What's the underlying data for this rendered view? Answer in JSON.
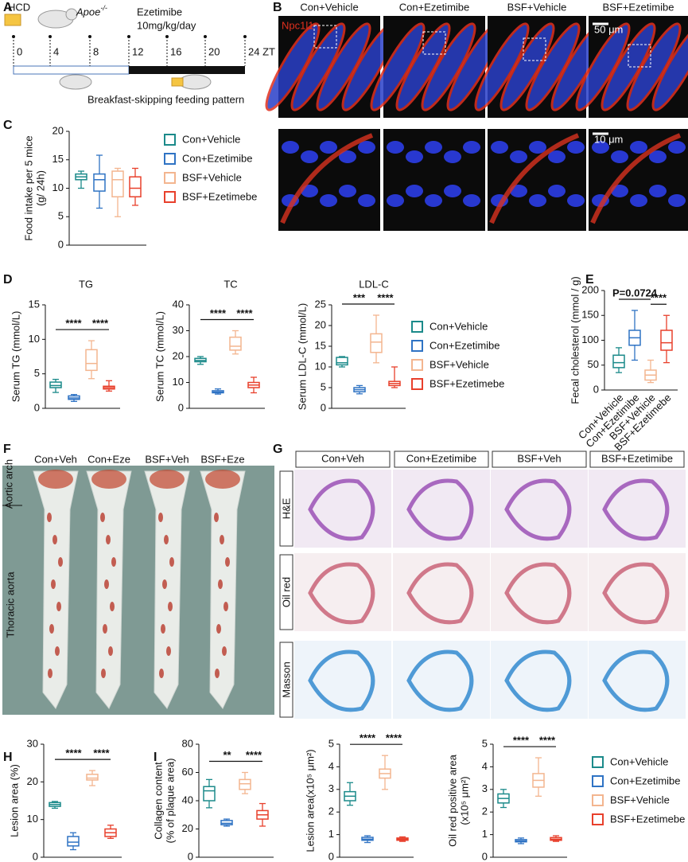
{
  "panel_letters": [
    "A",
    "B",
    "C",
    "D",
    "E",
    "F",
    "G",
    "H",
    "I"
  ],
  "groups": [
    {
      "name": "Con+Vehicle",
      "color": "#1b8a8a"
    },
    {
      "name": "Con+Ezetimibe",
      "color": "#2f73c4"
    },
    {
      "name": "BSF+Vehicle",
      "color": "#f3b58f"
    },
    {
      "name": "BSF+Ezetimebe",
      "color": "#e8402c"
    }
  ],
  "panel_a": {
    "diet": "HCD",
    "strain": "Apoe",
    "strain_sup": "-/-",
    "drug": "Ezetimibe",
    "dose": "10mg/kg/day",
    "times": [
      "0",
      "4",
      "8",
      "12",
      "16",
      "20",
      "24 ZT"
    ],
    "pattern": "Breakfast-skipping feeding pattern"
  },
  "panel_b": {
    "columns": [
      "Con+Vehicle",
      "Con+Ezetimibe",
      "BSF+Vehicle",
      "BSF+Ezetimibe"
    ],
    "stain": "Npc1l1",
    "scale_top": "50 μm",
    "scale_bottom": "10 μm"
  },
  "panel_f": {
    "columns": [
      "Con+Veh",
      "Con+Eze",
      "BSF+Veh",
      "BSF+Eze"
    ],
    "regions": [
      "Aortic arch",
      "Thoracic aorta"
    ]
  },
  "panel_g": {
    "columns": [
      "Con+Veh",
      "Con+Ezetimibe",
      "BSF+Veh",
      "BSF+Ezetimibe"
    ],
    "rows": [
      "H&E",
      "Oil red",
      "Masson"
    ]
  },
  "chart_data": [
    {
      "type": "box",
      "ylabel": [
        "Food intake per 5 mice",
        "(g/ 24h)"
      ],
      "ylim": [
        0,
        20
      ],
      "yticks": [
        0,
        5,
        10,
        15,
        20
      ],
      "values": [
        [
          10,
          11.5,
          12,
          12.5,
          13
        ],
        [
          6.5,
          9.5,
          11.5,
          12.5,
          15.8
        ],
        [
          5,
          8.5,
          11.5,
          13,
          13.5
        ],
        [
          7,
          8.5,
          10,
          12,
          13.5
        ]
      ],
      "annotations": [],
      "legend": true
    },
    {
      "type": "box",
      "title": "TG",
      "ylabel": [
        "Serum TG (mmol/L)"
      ],
      "ylim": [
        0,
        15
      ],
      "yticks": [
        0,
        5,
        10,
        15
      ],
      "values": [
        [
          2.3,
          3,
          3.3,
          3.8,
          4.2
        ],
        [
          1,
          1.3,
          1.5,
          1.8,
          2
        ],
        [
          4.3,
          5.5,
          6.5,
          8.5,
          9.8
        ],
        [
          2.5,
          2.8,
          3,
          3.2,
          4
        ]
      ],
      "annotations": [
        "****",
        "****"
      ],
      "legend": false
    },
    {
      "type": "box",
      "title": "TC",
      "ylabel": [
        "Serum TC (mmol/L)"
      ],
      "ylim": [
        0,
        40
      ],
      "yticks": [
        0,
        10,
        20,
        30,
        40
      ],
      "values": [
        [
          17,
          18,
          18.5,
          19.3,
          20
        ],
        [
          5.5,
          6,
          6.3,
          6.8,
          7.5
        ],
        [
          21,
          22.5,
          24,
          27.5,
          30
        ],
        [
          6,
          8,
          9,
          10,
          12
        ]
      ],
      "annotations": [
        "****",
        "****"
      ],
      "legend": false
    },
    {
      "type": "box",
      "title": "LDL-C",
      "ylabel": [
        "Serum LDL-C (mmol/L)"
      ],
      "ylim": [
        0,
        25
      ],
      "yticks": [
        0,
        5,
        10,
        15,
        20,
        25
      ],
      "values": [
        [
          10,
          10.5,
          11,
          12.3,
          12.5
        ],
        [
          3.5,
          4,
          4.5,
          5,
          5.5
        ],
        [
          11,
          13.5,
          16,
          18,
          22.5
        ],
        [
          5,
          5.5,
          6,
          6.5,
          10
        ]
      ],
      "annotations": [
        "***",
        "****"
      ],
      "legend": true
    },
    {
      "type": "box",
      "ylabel": [
        "Fecal cholesterol (mmol / g)"
      ],
      "ylim": [
        0,
        200
      ],
      "yticks": [
        0,
        50,
        100,
        150,
        200
      ],
      "values": [
        [
          35,
          45,
          55,
          70,
          85
        ],
        [
          60,
          90,
          105,
          120,
          160
        ],
        [
          15,
          20,
          30,
          40,
          60
        ],
        [
          55,
          80,
          95,
          120,
          150
        ]
      ],
      "annotations": [
        "P=0.0724",
        "****"
      ],
      "legend": false,
      "x_labels": true
    },
    {
      "type": "box",
      "ylabel": [
        "Lesion area (%)"
      ],
      "ylim": [
        0,
        30
      ],
      "yticks": [
        0,
        10,
        20,
        30
      ],
      "values": [
        [
          13,
          13.5,
          14,
          14.5,
          14.8
        ],
        [
          2,
          3,
          4,
          5.5,
          6.5
        ],
        [
          19,
          20.5,
          21,
          22,
          23
        ],
        [
          5,
          5.5,
          6.5,
          7.5,
          8.5
        ]
      ],
      "annotations": [
        "****",
        "****"
      ],
      "legend": false
    },
    {
      "type": "box",
      "ylabel": [
        "Collagen content",
        "(% of plaque area)"
      ],
      "ylim": [
        0,
        80
      ],
      "yticks": [
        0,
        20,
        40,
        60,
        80
      ],
      "values": [
        [
          35,
          40,
          47,
          50,
          55
        ],
        [
          22,
          23,
          24,
          26,
          27
        ],
        [
          45,
          48,
          52,
          55,
          60
        ],
        [
          22,
          27,
          30,
          33,
          38
        ]
      ],
      "annotations": [
        "**",
        "****"
      ],
      "legend": false
    },
    {
      "type": "box",
      "ylabel": [
        "Lesion area(x10⁵ μm²)"
      ],
      "ylim": [
        0,
        5
      ],
      "yticks": [
        0,
        1,
        2,
        3,
        4,
        5
      ],
      "values": [
        [
          2.3,
          2.5,
          2.7,
          2.9,
          3.3
        ],
        [
          0.65,
          0.75,
          0.8,
          0.88,
          0.95
        ],
        [
          3,
          3.5,
          3.7,
          3.9,
          4.5
        ],
        [
          0.7,
          0.75,
          0.8,
          0.85,
          0.9
        ]
      ],
      "annotations": [
        "****",
        "****"
      ],
      "legend": false
    },
    {
      "type": "box",
      "ylabel": [
        "Oil red positive area",
        "(x10⁵ μm²)"
      ],
      "ylim": [
        0,
        5
      ],
      "yticks": [
        0,
        1,
        2,
        3,
        4,
        5
      ],
      "values": [
        [
          2.2,
          2.4,
          2.6,
          2.8,
          3
        ],
        [
          0.6,
          0.68,
          0.72,
          0.78,
          0.85
        ],
        [
          2.7,
          3.1,
          3.4,
          3.7,
          4.4
        ],
        [
          0.7,
          0.75,
          0.8,
          0.87,
          0.95
        ]
      ],
      "annotations": [
        "****",
        "****"
      ],
      "legend": true
    }
  ]
}
